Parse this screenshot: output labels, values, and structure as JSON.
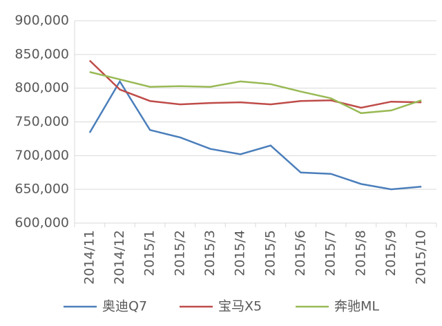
{
  "chart_data": {
    "type": "line",
    "categories": [
      "2014/11",
      "2014/12",
      "2015/1",
      "2015/2",
      "2015/3",
      "2015/4",
      "2015/5",
      "2015/6",
      "2015/7",
      "2015/8",
      "2015/9",
      "2015/10"
    ],
    "series": [
      {
        "name": "奥迪Q7",
        "color": "#4a7ebb",
        "values": [
          734000,
          810000,
          738000,
          727000,
          710000,
          702000,
          715000,
          675000,
          673000,
          658000,
          650000,
          654000
        ]
      },
      {
        "name": "宝马X5",
        "color": "#be4b48",
        "values": [
          841000,
          798000,
          781000,
          776000,
          778000,
          779000,
          776000,
          781000,
          782000,
          771000,
          780000,
          779000
        ]
      },
      {
        "name": "奔驰ML",
        "color": "#98b954",
        "values": [
          824000,
          813000,
          802000,
          803000,
          802000,
          810000,
          806000,
          795000,
          785000,
          763000,
          767000,
          782000
        ]
      }
    ],
    "ylim": [
      600000,
      900000
    ],
    "yticks": [
      {
        "value": 600000,
        "label": "600,000"
      },
      {
        "value": 650000,
        "label": "650,000"
      },
      {
        "value": 700000,
        "label": "700,000"
      },
      {
        "value": 750000,
        "label": "750,000"
      },
      {
        "value": 800000,
        "label": "800,000"
      },
      {
        "value": 850000,
        "label": "850,000"
      },
      {
        "value": 900000,
        "label": "900,000"
      }
    ],
    "grid": true,
    "legend": "bottom"
  }
}
